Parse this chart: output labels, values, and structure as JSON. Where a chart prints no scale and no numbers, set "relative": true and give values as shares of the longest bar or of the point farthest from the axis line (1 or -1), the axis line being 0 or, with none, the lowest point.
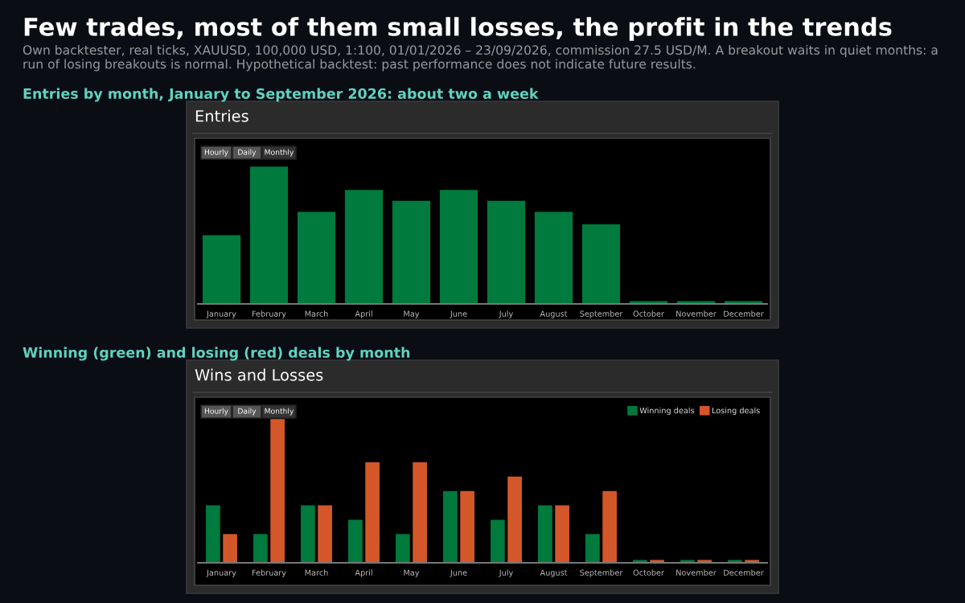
{
  "chart_data": [
    {
      "type": "bar",
      "title": "Entries",
      "subtitle": "Entries by month, January to September 2026: about two a week",
      "relative": true,
      "categories": [
        "January",
        "February",
        "March",
        "April",
        "May",
        "June",
        "July",
        "August",
        "September",
        "October",
        "November",
        "December"
      ],
      "series": [
        {
          "color": "#007a3d",
          "values": [
            0.5,
            1,
            0.67,
            0.83,
            0.75,
            0.83,
            0.75,
            0.67,
            0.58,
            0.02,
            0.02,
            0.02
          ]
        }
      ],
      "grid": false,
      "annotations": [
        "Few trades, most of them small losses, the profit in the trends",
        "Own backtester, real ticks, XAUUSD, 100,000 USD, 1:100, 01/01/2026 – 23/09/2026, commission 27.5 USD/M. A breakout waits in quiet months: a run of losing breakouts is normal. Hypothetical backtest: past performance does not indicate future results.",
        "Hourly",
        "Daily",
        "Monthly"
      ]
    },
    {
      "type": "bar",
      "title": "Wins and Losses",
      "subtitle": "Winning (green) and losing (red) deals by month",
      "relative": true,
      "categories": [
        "January",
        "February",
        "March",
        "April",
        "May",
        "June",
        "July",
        "August",
        "September",
        "October",
        "November",
        "December"
      ],
      "series": [
        {
          "name": "Winning deals",
          "color": "#007a3d",
          "values": [
            0.4,
            0.2,
            0.4,
            0.3,
            0.2,
            0.5,
            0.3,
            0.4,
            0.2,
            0.02,
            0.02,
            0.02
          ]
        },
        {
          "name": "Losing deals",
          "color": "#d4572a",
          "values": [
            0.2,
            1,
            0.4,
            0.7,
            0.7,
            0.5,
            0.6,
            0.4,
            0.5,
            0.02,
            0.02,
            0.02
          ]
        }
      ],
      "grid": false,
      "legend": "top right",
      "annotations": [
        "Hourly",
        "Daily",
        "Monthly"
      ]
    }
  ]
}
